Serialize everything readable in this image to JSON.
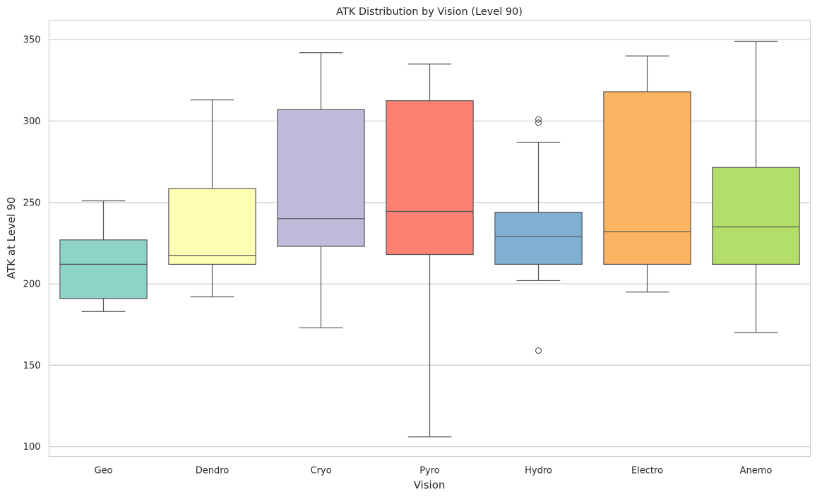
{
  "chart_data": {
    "type": "box",
    "title": "ATK Distribution by Vision (Level 90)",
    "xlabel": "Vision",
    "ylabel": "ATK at Level 90",
    "ylim": [
      94,
      362
    ],
    "yticks": [
      100,
      150,
      200,
      250,
      300,
      350
    ],
    "grid": "horizontal",
    "categories": [
      "Geo",
      "Dendro",
      "Cryo",
      "Pyro",
      "Hydro",
      "Electro",
      "Anemo"
    ],
    "boxes": [
      {
        "category": "Geo",
        "whisker_low": 183,
        "q1": 191,
        "median": 212,
        "q3": 227,
        "whisker_high": 251,
        "outliers": [],
        "color": "#8dd3c7"
      },
      {
        "category": "Dendro",
        "whisker_low": 192,
        "q1": 212,
        "median": 217.5,
        "q3": 258.5,
        "whisker_high": 313,
        "outliers": [],
        "color": "#ffffb3"
      },
      {
        "category": "Cryo",
        "whisker_low": 173,
        "q1": 223,
        "median": 240,
        "q3": 307,
        "whisker_high": 342,
        "outliers": [],
        "color": "#bebada"
      },
      {
        "category": "Pyro",
        "whisker_low": 106,
        "q1": 218,
        "median": 244.5,
        "q3": 312.5,
        "whisker_high": 335,
        "outliers": [],
        "color": "#fb8072"
      },
      {
        "category": "Hydro",
        "whisker_low": 202,
        "q1": 212,
        "median": 229,
        "q3": 244,
        "whisker_high": 287,
        "outliers": [
          159,
          299,
          301
        ],
        "color": "#80b1d3"
      },
      {
        "category": "Electro",
        "whisker_low": 195,
        "q1": 212,
        "median": 232,
        "q3": 318,
        "whisker_high": 340,
        "outliers": [],
        "color": "#fdb462"
      },
      {
        "category": "Anemo",
        "whisker_low": 170,
        "q1": 212,
        "median": 235,
        "q3": 271.5,
        "whisker_high": 349,
        "outliers": [],
        "color": "#b3de69"
      }
    ],
    "colors": {
      "line": "#555555",
      "grid": "#cccccc",
      "spine": "#cccccc"
    }
  }
}
